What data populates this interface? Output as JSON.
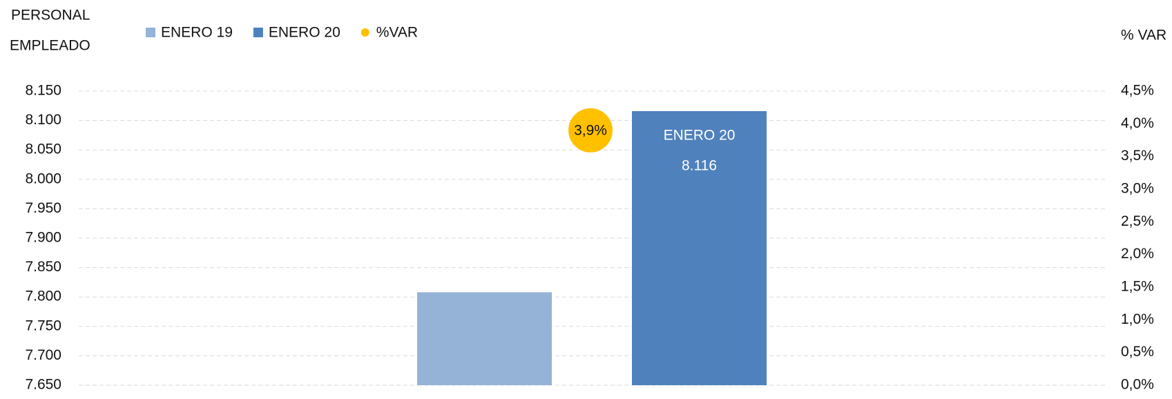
{
  "chart_data": {
    "type": "bar",
    "ylabel": [
      "PERSONAL",
      "EMPLEADO"
    ],
    "y2label": "% VAR",
    "categories": [
      null
    ],
    "series": [
      {
        "name": "ENERO 19",
        "color": "#95b3d7",
        "values": [
          7808
        ]
      },
      {
        "name": "ENERO 20",
        "color": "#4f81bd",
        "values": [
          8116
        ],
        "value_labels": [
          "8.116"
        ]
      },
      {
        "name": "%VAR",
        "color": "#ffc000",
        "type": "scatter",
        "axis": "y2",
        "values": [
          3.9
        ],
        "value_labels": [
          "3,9%"
        ]
      }
    ],
    "ylim": [
      7650,
      8150
    ],
    "yticks": [
      {
        "value": 7650,
        "label": "7.650"
      },
      {
        "value": 7700,
        "label": "7.700"
      },
      {
        "value": 7750,
        "label": "7.750"
      },
      {
        "value": 7800,
        "label": "7.800"
      },
      {
        "value": 7850,
        "label": "7.850"
      },
      {
        "value": 7900,
        "label": "7.900"
      },
      {
        "value": 7950,
        "label": "7.950"
      },
      {
        "value": 8000,
        "label": "8.000"
      },
      {
        "value": 8050,
        "label": "8.050"
      },
      {
        "value": 8100,
        "label": "8.100"
      },
      {
        "value": 8150,
        "label": "8.150"
      }
    ],
    "y2lim": [
      0,
      4.5
    ],
    "y2ticks": [
      {
        "value": 0,
        "label": "0,0%"
      },
      {
        "value": 0.5,
        "label": "0,5%"
      },
      {
        "value": 1,
        "label": "1,0%"
      },
      {
        "value": 1.5,
        "label": "1,5%"
      },
      {
        "value": 2,
        "label": "2,0%"
      },
      {
        "value": 2.5,
        "label": "2,5%"
      },
      {
        "value": 3,
        "label": "3,0%"
      },
      {
        "value": 3.5,
        "label": "3,5%"
      },
      {
        "value": 4,
        "label": "4,0%"
      },
      {
        "value": 4.5,
        "label": "4,5%"
      }
    ],
    "grid": true,
    "legend": "top-left"
  }
}
